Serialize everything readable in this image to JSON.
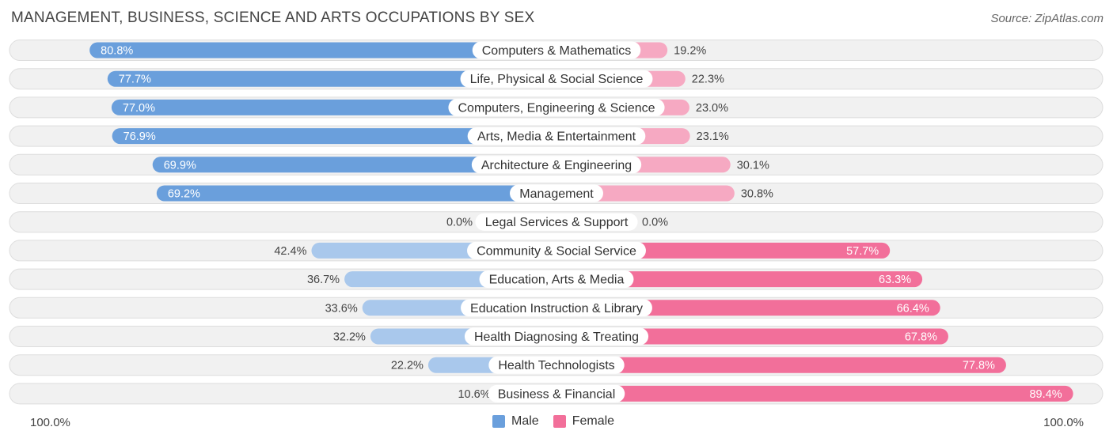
{
  "title": "MANAGEMENT, BUSINESS, SCIENCE AND ARTS OCCUPATIONS BY SEX",
  "source": "Source: ZipAtlas.com",
  "colors": {
    "male": "#6a9fdc",
    "male_light": "#a9c8ec",
    "female": "#f26f9a",
    "female_light": "#f6a9c2",
    "row_bg": "#f1f1f1",
    "row_border": "#dddddd"
  },
  "chart_data": {
    "type": "bar",
    "orientation": "horizontal-diverging",
    "categories": [
      "Computers & Mathematics",
      "Life, Physical & Social Science",
      "Computers, Engineering & Science",
      "Arts, Media & Entertainment",
      "Architecture & Engineering",
      "Management",
      "Legal Services & Support",
      "Community & Social Service",
      "Education, Arts & Media",
      "Education Instruction & Library",
      "Health Diagnosing & Treating",
      "Health Technologists",
      "Business & Financial"
    ],
    "series": [
      {
        "name": "Male",
        "values": [
          80.8,
          77.7,
          77.0,
          76.9,
          69.9,
          69.2,
          0.0,
          42.4,
          36.7,
          33.6,
          32.2,
          22.2,
          10.6
        ],
        "labels": [
          "80.8%",
          "77.7%",
          "77.0%",
          "76.9%",
          "69.9%",
          "69.2%",
          "0.0%",
          "42.4%",
          "36.7%",
          "33.6%",
          "32.2%",
          "22.2%",
          "10.6%"
        ]
      },
      {
        "name": "Female",
        "values": [
          19.2,
          22.3,
          23.0,
          23.1,
          30.1,
          30.8,
          0.0,
          57.7,
          63.3,
          66.4,
          67.8,
          77.8,
          89.4
        ],
        "labels": [
          "19.2%",
          "22.3%",
          "23.0%",
          "23.1%",
          "30.1%",
          "30.8%",
          "0.0%",
          "57.7%",
          "63.3%",
          "66.4%",
          "67.8%",
          "77.8%",
          "89.4%"
        ]
      }
    ],
    "xlim": [
      0,
      100
    ],
    "axis_left_label": "100.0%",
    "axis_right_label": "100.0%",
    "legend": [
      "Male",
      "Female"
    ],
    "legend_position": "bottom-center"
  }
}
